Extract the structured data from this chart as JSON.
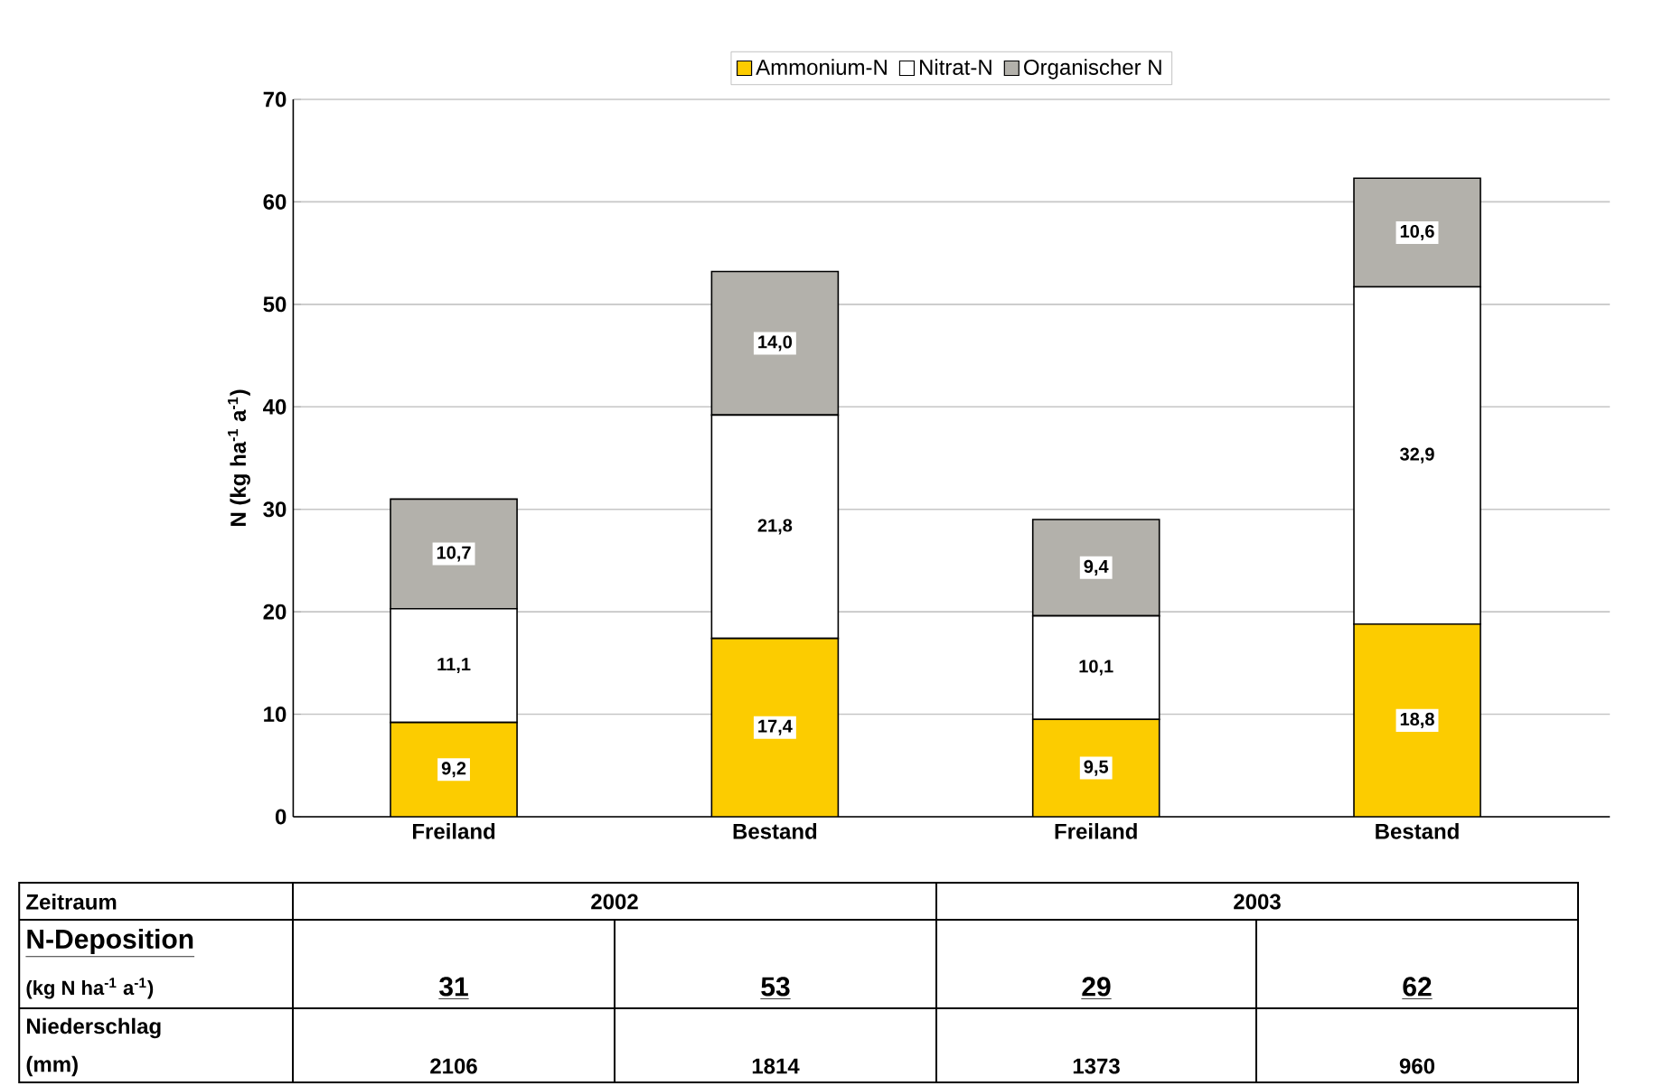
{
  "chart_data": {
    "type": "bar",
    "stacked": true,
    "ylabel": "N (kg ha$^{-1}$ a$^{-1}$)",
    "categories": [
      "Freiland",
      "Bestand",
      "Freiland",
      "Bestand"
    ],
    "series": [
      {
        "name": "Ammonium-N",
        "color": "#fccc00",
        "values": [
          9.2,
          17.4,
          9.5,
          18.8
        ],
        "value_labels": [
          "9,2",
          "17,4",
          "9,5",
          "18,8"
        ]
      },
      {
        "name": "Nitrat-N",
        "color": "#ffffff",
        "values": [
          11.1,
          21.8,
          10.1,
          32.9
        ],
        "value_labels": [
          "11,1",
          "21,8",
          "10,1",
          "32,9"
        ]
      },
      {
        "name": "Organischer N",
        "color": "#b3b1ab",
        "values": [
          10.7,
          14.0,
          9.4,
          10.6
        ],
        "value_labels": [
          "10,7",
          "14,0",
          "9,4",
          "10,6"
        ]
      }
    ],
    "ylim": [
      0,
      70
    ],
    "yticks": [
      0,
      10,
      20,
      30,
      40,
      50,
      60,
      70
    ],
    "grid": "y",
    "legend": "top",
    "annotations": [
      "Zeitraum",
      "2002",
      "2003",
      "N-Deposition",
      "(kg N ha$^{-1}$ a$^{-1}$)",
      "31",
      "53",
      "29",
      "62",
      "Niederschlag",
      "(mm)",
      "2106",
      "1814",
      "1373",
      "960"
    ]
  }
}
